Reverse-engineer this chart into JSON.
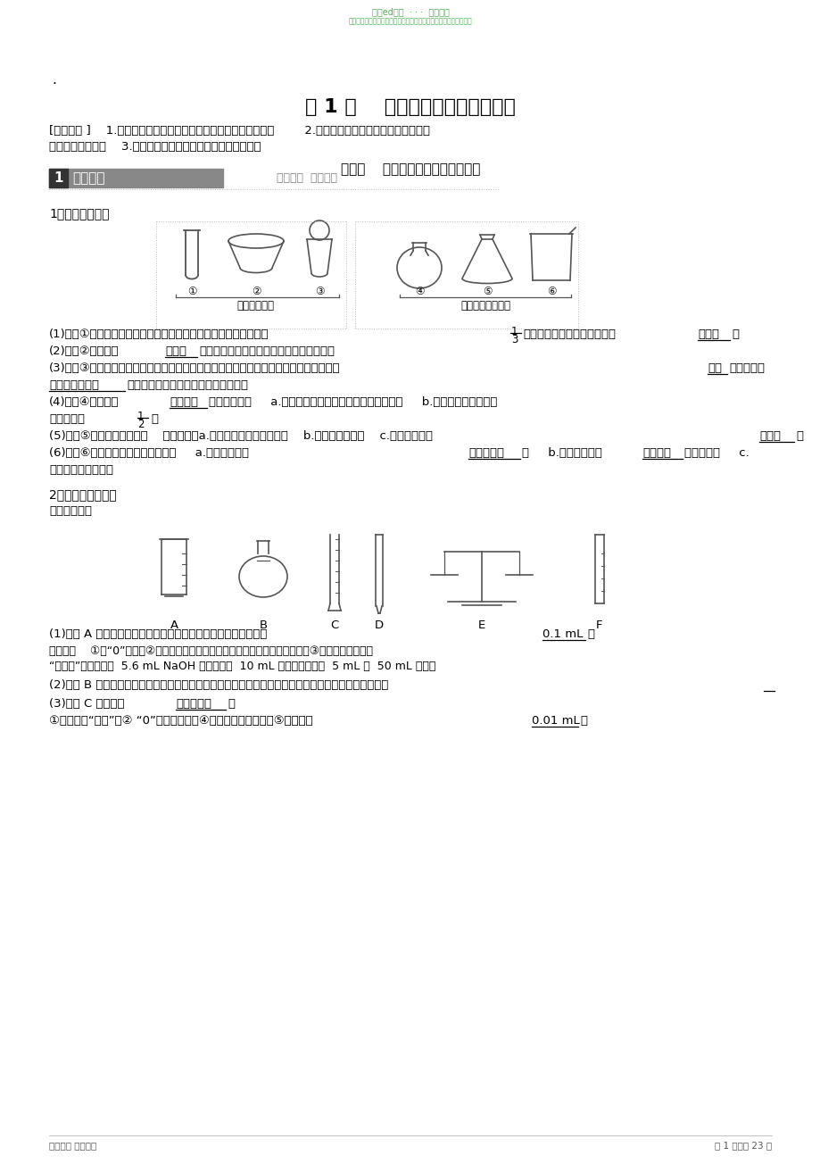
{
  "title": "第 1 讲    化学实验基础知识和技能",
  "watermark_top": "精哆ed资料  · · ·  欢迎下载",
  "watermark_top2": "如果您喜欢这份文档，欢迎您继续浏览，您的支持是我们进步的动力",
  "kaog1": "[考纲要求 ]    1.了解化学实验室常用仪器的主要用途和使用方法。        2.掌握化学实验的基本操作，能识别药",
  "kaog2": "品安全使用标志。    3.了解实验室一般事故的预防和处理方法。",
  "kaodian": "考点一    常用化学仪器的识别与使用",
  "section_title": "知识梳理",
  "section_subtitle": "夙实基础  突破疑难",
  "item1_title": "1．可加热的仪器",
  "instruments_label1": "直接加热仪器",
  "instruments_label2": "垫石棉网加热仪器",
  "item2_title": "2．常用的计量仪器",
  "item2_sub": "完成下列空白",
  "instruments2_labels": [
    "A",
    "B",
    "C",
    "D",
    "E",
    "F"
  ],
  "footer_left": "化龙飞渡 版权归纳",
  "footer_right": "第 1 页，共 23 页",
  "bg_color": "#ffffff"
}
